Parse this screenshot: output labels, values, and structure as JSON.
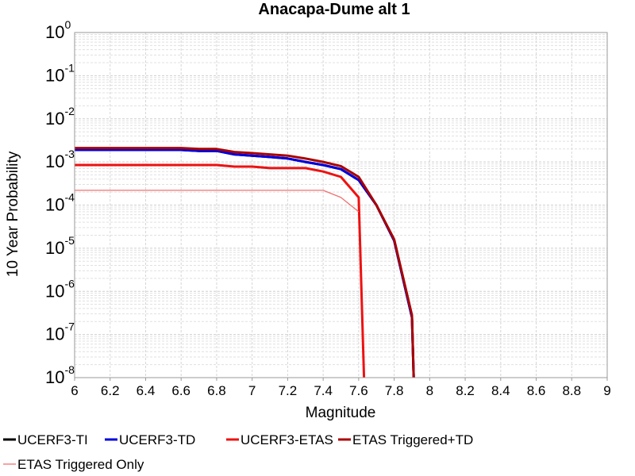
{
  "chart_data": {
    "type": "line",
    "title": "Anacapa-Dume alt 1",
    "xlabel": "Magnitude",
    "ylabel": "10 Year Probability",
    "xlim": [
      6,
      9
    ],
    "ylim": [
      1e-08,
      1
    ],
    "yscale": "log",
    "grid": true,
    "legend_position": "bottom",
    "x_ticks": [
      "6",
      "6.2",
      "6.4",
      "6.6",
      "6.8",
      "7",
      "7.2",
      "7.4",
      "7.6",
      "7.8",
      "8",
      "8.2",
      "8.4",
      "8.6",
      "8.8",
      "9"
    ],
    "y_ticks": [
      {
        "base": "10",
        "exp": "0"
      },
      {
        "base": "10",
        "exp": "-1"
      },
      {
        "base": "10",
        "exp": "-2"
      },
      {
        "base": "10",
        "exp": "-3"
      },
      {
        "base": "10",
        "exp": "-4"
      },
      {
        "base": "10",
        "exp": "-5"
      },
      {
        "base": "10",
        "exp": "-6"
      },
      {
        "base": "10",
        "exp": "-7"
      },
      {
        "base": "10",
        "exp": "-8"
      }
    ],
    "series": [
      {
        "name": "UCERF3-TI",
        "color": "#000000",
        "width": 3,
        "x": [
          6.0,
          6.1,
          6.2,
          6.3,
          6.4,
          6.5,
          6.6,
          6.7,
          6.8,
          6.9,
          7.0,
          7.1,
          7.2,
          7.3,
          7.4,
          7.5,
          7.6,
          7.7,
          7.8,
          7.9,
          7.91
        ],
        "y": [
          0.0019,
          0.0019,
          0.0019,
          0.0019,
          0.0019,
          0.0019,
          0.0019,
          0.0018,
          0.0018,
          0.0015,
          0.0014,
          0.0013,
          0.0012,
          0.001,
          0.00085,
          0.00068,
          0.00038,
          0.0001,
          1.5e-05,
          2.5e-07,
          1e-08
        ]
      },
      {
        "name": "UCERF3-TD",
        "color": "#0000dd",
        "width": 3,
        "x": [
          6.0,
          6.1,
          6.2,
          6.3,
          6.4,
          6.5,
          6.6,
          6.7,
          6.8,
          6.9,
          7.0,
          7.1,
          7.2,
          7.3,
          7.4,
          7.5,
          7.6,
          7.7,
          7.8,
          7.9,
          7.91
        ],
        "y": [
          0.0019,
          0.0019,
          0.0019,
          0.0019,
          0.0019,
          0.0019,
          0.0019,
          0.0018,
          0.0018,
          0.0015,
          0.0014,
          0.0013,
          0.0012,
          0.001,
          0.00085,
          0.00068,
          0.00038,
          0.0001,
          1.5e-05,
          2.5e-07,
          1e-08
        ]
      },
      {
        "name": "UCERF3-ETAS",
        "color": "#ee1111",
        "width": 3,
        "x": [
          6.0,
          6.1,
          6.2,
          6.3,
          6.4,
          6.5,
          6.6,
          6.7,
          6.8,
          6.9,
          7.0,
          7.1,
          7.2,
          7.3,
          7.4,
          7.5,
          7.6,
          7.63
        ],
        "y": [
          0.00085,
          0.00085,
          0.00085,
          0.00085,
          0.00085,
          0.00085,
          0.00085,
          0.00085,
          0.00085,
          0.00078,
          0.00078,
          0.00072,
          0.00072,
          0.00072,
          0.0006,
          0.00045,
          0.00015,
          1e-08
        ]
      },
      {
        "name": "ETAS Triggered+TD",
        "color": "#aa0000",
        "width": 3,
        "x": [
          6.0,
          6.1,
          6.2,
          6.3,
          6.4,
          6.5,
          6.6,
          6.7,
          6.8,
          6.9,
          7.0,
          7.1,
          7.2,
          7.3,
          7.4,
          7.5,
          7.6,
          7.7,
          7.8,
          7.9,
          7.91
        ],
        "y": [
          0.0021,
          0.0021,
          0.0021,
          0.0021,
          0.0021,
          0.0021,
          0.0021,
          0.002,
          0.002,
          0.0017,
          0.0016,
          0.0015,
          0.0014,
          0.0012,
          0.001,
          0.0008,
          0.00045,
          0.0001,
          1.6e-05,
          2.8e-07,
          1e-08
        ]
      },
      {
        "name": "ETAS Triggered Only",
        "color": "#f07070",
        "width": 1.3,
        "x": [
          6.0,
          6.2,
          6.4,
          6.6,
          6.8,
          7.0,
          7.2,
          7.4,
          7.5,
          7.6
        ],
        "y": [
          0.00022,
          0.00022,
          0.00022,
          0.00022,
          0.00022,
          0.00022,
          0.00022,
          0.00022,
          0.00015,
          7e-05
        ]
      }
    ]
  }
}
